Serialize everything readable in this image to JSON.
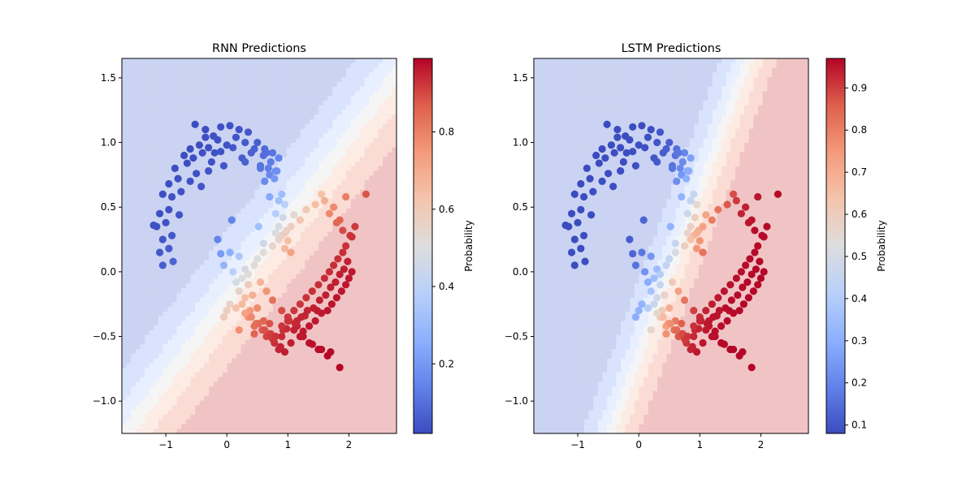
{
  "figure": {
    "background": "#ffffff"
  },
  "chart_data": [
    {
      "type": "scatter",
      "title": "RNN Predictions",
      "xlabel": "",
      "ylabel": "",
      "xlim": [
        -1.72,
        2.78
      ],
      "ylim": [
        -1.25,
        1.65
      ],
      "xticks": [
        "−1",
        "0",
        "1",
        "2"
      ],
      "xtick_values": [
        -1,
        0,
        1,
        2
      ],
      "yticks": [
        "−1.0",
        "−0.5",
        "0.0",
        "0.5",
        "1.0",
        "1.5"
      ],
      "ytick_values": [
        -1.0,
        -0.5,
        0.0,
        0.5,
        1.0,
        1.5
      ],
      "colorbar": {
        "label": "Probability",
        "range": [
          0.02,
          0.99
        ],
        "ticks": [
          "0.2",
          "0.4",
          "0.6",
          "0.8"
        ],
        "tick_values": [
          0.2,
          0.4,
          0.6,
          0.8
        ]
      },
      "decision_surface": {
        "angle_deg": 32,
        "center": [
          0.42,
          0.05
        ],
        "scale": 0.55,
        "bands": 7
      },
      "grid": false,
      "legend": "none"
    },
    {
      "type": "scatter",
      "title": "LSTM Predictions",
      "xlabel": "",
      "ylabel": "",
      "xlim": [
        -1.72,
        2.78
      ],
      "ylim": [
        -1.25,
        1.65
      ],
      "xticks": [
        "−1",
        "0",
        "1",
        "2"
      ],
      "xtick_values": [
        -1,
        0,
        1,
        2
      ],
      "yticks": [
        "−1.0",
        "−0.5",
        "0.0",
        "0.5",
        "1.0",
        "1.5"
      ],
      "ytick_values": [
        -1.0,
        -0.5,
        0.0,
        0.5,
        1.0,
        1.5
      ],
      "colorbar": {
        "label": "Probability",
        "range": [
          0.08,
          0.97
        ],
        "ticks": [
          "0.1",
          "0.2",
          "0.3",
          "0.4",
          "0.5",
          "0.6",
          "0.7",
          "0.8",
          "0.9"
        ],
        "tick_values": [
          0.1,
          0.2,
          0.3,
          0.4,
          0.5,
          0.6,
          0.7,
          0.8,
          0.9
        ]
      },
      "decision_surface": {
        "angle_deg": 52,
        "center": [
          0.55,
          0.05
        ],
        "scale": 0.45,
        "bands": 7
      },
      "grid": false,
      "legend": "none"
    }
  ],
  "points": {
    "description_free": true,
    "x": [
      -0.52,
      -0.35,
      -0.22,
      -0.1,
      0.05,
      0.2,
      0.35,
      0.5,
      0.62,
      0.75,
      0.85,
      -0.6,
      -0.45,
      -0.3,
      -0.15,
      0.0,
      0.15,
      0.3,
      0.45,
      0.6,
      0.72,
      -0.7,
      -0.55,
      -0.4,
      -0.25,
      -0.1,
      0.1,
      0.25,
      0.4,
      0.55,
      0.68,
      0.8,
      -0.85,
      -0.65,
      -0.5,
      -0.3,
      -0.05,
      0.3,
      0.55,
      0.7,
      0.82,
      -0.95,
      -0.8,
      -0.6,
      -0.42,
      0.62,
      0.78,
      0.9,
      -1.05,
      -0.9,
      -0.75,
      0.7,
      0.85,
      0.95,
      -1.1,
      -0.95,
      -0.78,
      0.8,
      0.92,
      -1.15,
      -1.0,
      0.85,
      0.98,
      -1.2,
      -1.05,
      -0.9,
      0.9,
      1.0,
      -1.1,
      -0.95,
      0.95,
      1.05,
      -1.05,
      -0.88,
      -0.1,
      0.05,
      0.2,
      -0.05,
      0.1,
      0.3,
      0.15,
      0.25,
      0.35,
      0.2,
      0.3,
      0.42,
      0.25,
      0.38,
      0.5,
      0.35,
      0.48,
      0.6,
      0.45,
      0.58,
      0.7,
      0.52,
      0.65,
      0.78,
      0.62,
      0.75,
      0.88,
      0.72,
      0.85,
      0.95,
      0.8,
      0.92,
      1.05,
      0.9,
      1.02,
      1.15,
      1.0,
      1.12,
      1.25,
      1.1,
      1.22,
      1.35,
      1.2,
      1.32,
      1.45,
      1.3,
      1.42,
      1.55,
      1.4,
      1.52,
      1.65,
      1.5,
      1.62,
      1.72,
      1.6,
      1.7,
      1.8,
      1.68,
      1.78,
      1.88,
      1.75,
      1.85,
      1.95,
      1.82,
      1.92,
      2.0,
      1.9,
      1.98,
      2.05,
      1.95,
      2.02,
      2.1,
      1.85,
      1.95,
      2.05,
      2.28,
      1.8,
      1.9,
      1.68,
      1.75,
      1.6,
      1.55,
      1.45,
      1.3,
      1.2,
      1.05,
      0.95,
      0.85,
      0.75,
      0.6,
      0.5,
      0.45,
      0.35,
      0.55,
      0.65,
      0.75,
      0.9,
      1.0,
      1.1,
      1.25,
      1.35,
      1.5,
      1.65,
      0.4,
      0.7,
      0.98,
      1.2,
      1.4,
      1.55,
      1.7,
      1.85,
      0.15,
      0.3,
      0.2,
      0.45,
      0.9,
      1.15,
      1.28,
      1.48,
      0.05,
      0.0,
      -0.05,
      0.6,
      0.8,
      1.1,
      -0.35,
      -0.2,
      0.65,
      -0.15,
      0.08,
      0.52
    ],
    "y": [
      1.14,
      1.1,
      1.05,
      1.12,
      1.13,
      1.1,
      1.08,
      1.0,
      0.95,
      0.92,
      0.88,
      0.95,
      0.98,
      0.96,
      1.02,
      0.98,
      1.04,
      1.0,
      0.95,
      0.9,
      0.85,
      0.9,
      0.88,
      0.92,
      0.85,
      0.93,
      0.96,
      0.88,
      0.92,
      0.82,
      0.8,
      0.78,
      0.8,
      0.84,
      0.76,
      0.78,
      0.82,
      0.85,
      0.8,
      0.75,
      0.78,
      0.68,
      0.72,
      0.7,
      0.66,
      0.7,
      0.72,
      0.6,
      0.6,
      0.58,
      0.62,
      0.58,
      0.55,
      0.52,
      0.45,
      0.48,
      0.44,
      0.45,
      0.42,
      0.35,
      0.38,
      0.35,
      0.32,
      0.36,
      0.25,
      0.28,
      0.28,
      0.24,
      0.15,
      0.18,
      0.18,
      0.15,
      0.05,
      0.08,
      0.14,
      0.15,
      0.12,
      0.05,
      0.0,
      0.02,
      -0.08,
      -0.05,
      -0.1,
      -0.15,
      -0.2,
      -0.18,
      -0.25,
      -0.3,
      -0.28,
      -0.35,
      -0.4,
      -0.38,
      -0.42,
      -0.45,
      -0.48,
      -0.4,
      -0.5,
      -0.55,
      -0.45,
      -0.52,
      -0.58,
      -0.48,
      -0.6,
      -0.62,
      -0.5,
      -0.45,
      -0.55,
      -0.5,
      -0.38,
      -0.42,
      -0.35,
      -0.4,
      -0.46,
      -0.3,
      -0.35,
      -0.42,
      -0.25,
      -0.3,
      -0.38,
      -0.2,
      -0.28,
      -0.32,
      -0.15,
      -0.22,
      -0.3,
      -0.1,
      -0.18,
      -0.25,
      -0.05,
      -0.12,
      -0.2,
      0.0,
      -0.08,
      -0.15,
      0.05,
      -0.02,
      -0.1,
      0.1,
      0.02,
      -0.05,
      0.15,
      0.08,
      0.0,
      0.2,
      0.28,
      0.35,
      0.4,
      0.58,
      0.27,
      0.6,
      0.38,
      0.32,
      0.45,
      0.5,
      0.55,
      0.6,
      0.52,
      0.48,
      0.4,
      0.35,
      0.3,
      0.25,
      0.2,
      0.15,
      0.1,
      0.05,
      -0.02,
      -0.08,
      -0.15,
      -0.22,
      -0.3,
      -0.38,
      -0.45,
      -0.5,
      -0.55,
      -0.6,
      -0.65,
      -0.35,
      -0.4,
      -0.44,
      -0.5,
      -0.56,
      -0.6,
      -0.62,
      -0.74,
      -0.28,
      -0.32,
      -0.45,
      -0.48,
      -0.42,
      -0.38,
      -0.34,
      -0.3,
      -0.25,
      -0.3,
      -0.35,
      0.22,
      0.3,
      0.44,
      1.04,
      0.92,
      0.92,
      0.25,
      0.4,
      0.35
    ],
    "p_rnn": [],
    "p_lstm": []
  }
}
